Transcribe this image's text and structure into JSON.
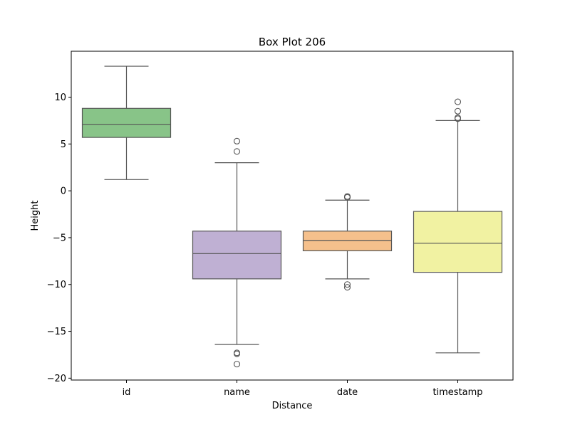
{
  "chart_data": {
    "type": "box",
    "title": "Box Plot 206",
    "xlabel": "Distance",
    "ylabel": "Height",
    "ylim": [
      -20.2,
      14.9
    ],
    "yticks": [
      10,
      5,
      0,
      -5,
      -10,
      -15,
      -20
    ],
    "ytick_labels": [
      "10",
      "5",
      "0",
      "−5",
      "−10",
      "−15",
      "−20"
    ],
    "categories": [
      "id",
      "name",
      "date",
      "timestamp"
    ],
    "boxes": [
      {
        "category": "id",
        "color": "#88c488",
        "whisker_low": 1.2,
        "q1": 5.7,
        "median": 7.1,
        "q3": 8.8,
        "whisker_high": 13.3,
        "outliers": []
      },
      {
        "category": "name",
        "color": "#bfb0d3",
        "whisker_low": -16.4,
        "q1": -9.4,
        "median": -6.7,
        "q3": -4.3,
        "whisker_high": 3.0,
        "outliers": [
          5.3,
          4.2,
          -17.3,
          -17.4,
          -18.5
        ]
      },
      {
        "category": "date",
        "color": "#f5c08c",
        "whisker_low": -9.4,
        "q1": -6.4,
        "median": -5.3,
        "q3": -4.3,
        "whisker_high": -1.0,
        "outliers": [
          -0.6,
          -0.7,
          -10.0,
          -10.3
        ]
      },
      {
        "category": "timestamp",
        "color": "#f1f2a2",
        "whisker_low": -17.3,
        "q1": -8.7,
        "median": -5.6,
        "q3": -2.2,
        "whisker_high": 7.5,
        "outliers": [
          9.5,
          8.5,
          7.8,
          7.7
        ]
      }
    ],
    "grid": false
  }
}
